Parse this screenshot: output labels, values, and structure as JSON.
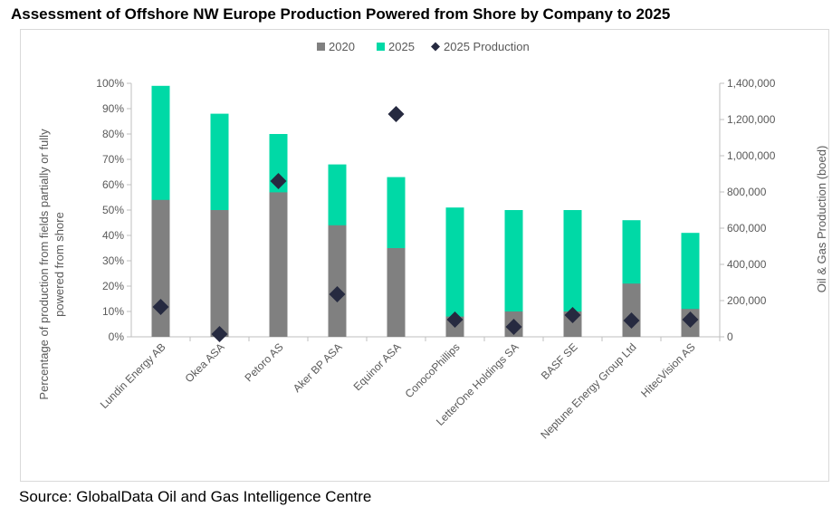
{
  "title": "Assessment of Offshore NW Europe Production Powered from Shore by Company to 2025",
  "source": "Source: GlobalData Oil and Gas Intelligence Centre",
  "colors": {
    "s2020": "#808080",
    "s2025": "#00d9a6",
    "production": "#262a40"
  },
  "chart_data": {
    "type": "bar",
    "title": "Assessment of Offshore NW Europe Production Powered from Shore by Company to 2025",
    "categories": [
      "Lundin Energy AB",
      "Okea ASA",
      "Petoro AS",
      "Aker BP ASA",
      "Equinor ASA",
      "ConocoPhillips",
      "LetterOne Holdings SA",
      "BASF SE",
      "Neptune Energy Group Ltd",
      "HitecVision AS"
    ],
    "series": [
      {
        "name": "2020",
        "kind": "bar",
        "axis": "left",
        "values": [
          0.54,
          0.5,
          0.57,
          0.44,
          0.35,
          0.08,
          0.1,
          0.1,
          0.21,
          0.11
        ]
      },
      {
        "name": "2025",
        "kind": "bar",
        "axis": "left",
        "values": [
          0.99,
          0.88,
          0.8,
          0.68,
          0.63,
          0.51,
          0.5,
          0.5,
          0.46,
          0.41
        ]
      },
      {
        "name": "2025 Production",
        "kind": "marker",
        "axis": "right",
        "values": [
          165000,
          15000,
          860000,
          235000,
          1230000,
          95000,
          55000,
          120000,
          90000,
          95000
        ]
      }
    ],
    "ylabel": "Percentage of production from fields partially or fully powered from shore",
    "ylabel_lines": [
      "Percentage of production from fields partially or fully",
      "powered from shore"
    ],
    "y2label": "Oil & Gas Production (boed)",
    "ylim": [
      0,
      1
    ],
    "y2lim": [
      0,
      1400000
    ],
    "yticks": [
      "0%",
      "10%",
      "20%",
      "30%",
      "40%",
      "50%",
      "60%",
      "70%",
      "80%",
      "90%",
      "100%"
    ],
    "y2ticks": [
      "0",
      "200,000",
      "400,000",
      "600,000",
      "800,000",
      "1,000,000",
      "1,200,000",
      "1,400,000"
    ],
    "legend": {
      "position": "top",
      "items": [
        "2020",
        "2025",
        "2025 Production"
      ]
    },
    "grid": false
  }
}
